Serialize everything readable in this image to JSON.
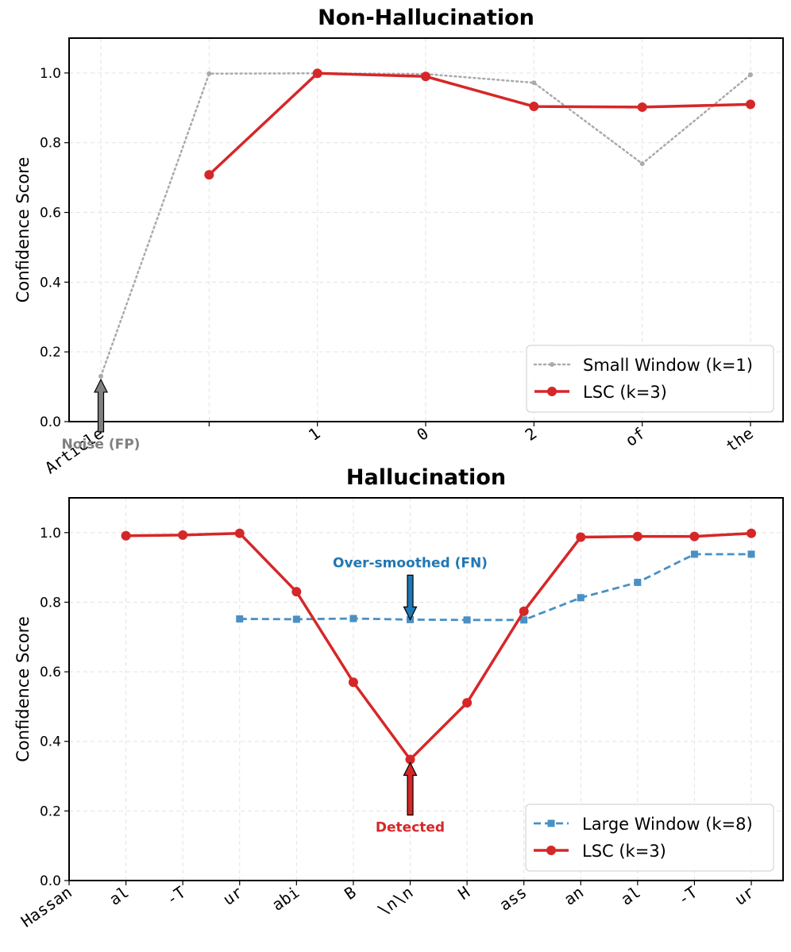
{
  "chart_data": [
    {
      "type": "line",
      "title": "Non-Hallucination",
      "xlabel": "",
      "ylabel": "Confidence Score",
      "ylim": [
        0,
        1.1
      ],
      "yticks": [
        "0.0",
        "0.2",
        "0.4",
        "0.6",
        "0.8",
        "1.0"
      ],
      "grid": true,
      "categories": [
        "Article",
        "",
        "1",
        "0",
        "2",
        "of",
        "the"
      ],
      "series": [
        {
          "name": "Small Window (k=1)",
          "style": "dotted",
          "marker": "dot",
          "color": "#aaaaaa",
          "values": [
            0.13,
            0.998,
            0.999,
            0.997,
            0.972,
            0.74,
            0.995
          ]
        },
        {
          "name": "LSC (k=3)",
          "style": "solid",
          "marker": "circle",
          "color": "#d62728",
          "values": [
            null,
            0.708,
            0.999,
            0.99,
            0.904,
            0.902,
            0.91
          ]
        }
      ],
      "annotations": [
        {
          "text": "Noise (FP)",
          "category_index": 0,
          "value": 0.13,
          "color": "#808080",
          "fill": "#808080"
        }
      ],
      "legend": {
        "position": "lower-right"
      }
    },
    {
      "type": "line",
      "title": "Hallucination",
      "xlabel": "",
      "ylabel": "Confidence Score",
      "ylim": [
        0,
        1.1
      ],
      "yticks": [
        "0.0",
        "0.2",
        "0.4",
        "0.6",
        "0.8",
        "1.0"
      ],
      "grid": true,
      "categories": [
        "Hassan",
        "al",
        "-T",
        "ur",
        "abi",
        "B",
        "\\n\\n",
        "H",
        "ass",
        "an",
        "al",
        "-T",
        "ur"
      ],
      "series": [
        {
          "name": "Large Window (k=8)",
          "style": "dashed",
          "marker": "square",
          "color": "#4a90c4",
          "values": [
            null,
            null,
            null,
            0.752,
            0.751,
            0.753,
            0.75,
            0.749,
            0.749,
            0.813,
            0.857,
            0.938,
            0.938
          ]
        },
        {
          "name": "LSC (k=3)",
          "style": "solid",
          "marker": "circle",
          "color": "#d62728",
          "values": [
            null,
            0.991,
            0.993,
            0.998,
            0.83,
            0.57,
            0.348,
            0.511,
            0.774,
            0.987,
            0.989,
            0.989,
            0.998
          ]
        }
      ],
      "annotations": [
        {
          "text": "Over-smoothed (FN)",
          "category_index": 6,
          "value": 0.75,
          "color": "#1f77b4",
          "fill": "#1f77b4",
          "direction": "down"
        },
        {
          "text": "Detected",
          "category_index": 6,
          "value": 0.348,
          "color": "#d62728",
          "fill": "#d62728",
          "direction": "up"
        }
      ],
      "legend": {
        "position": "lower-right"
      }
    }
  ]
}
